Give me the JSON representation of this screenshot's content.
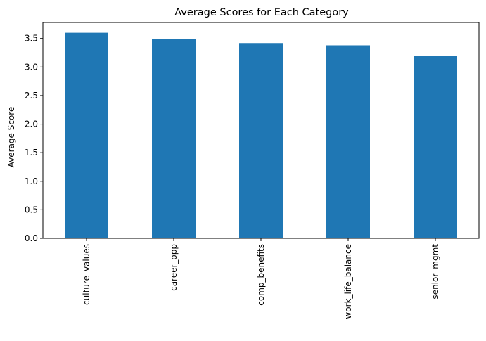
{
  "chart_data": {
    "type": "bar",
    "title": "Average Scores for Each Category",
    "xlabel": "",
    "ylabel": "Average Score",
    "categories": [
      "culture_values",
      "career_opp",
      "comp_benefits",
      "work_life_balance",
      "senior_mgmt"
    ],
    "values": [
      3.6,
      3.49,
      3.42,
      3.38,
      3.2
    ],
    "ylim": [
      0,
      3.78
    ],
    "yticks": [
      0.0,
      0.5,
      1.0,
      1.5,
      2.0,
      2.5,
      3.0,
      3.5
    ],
    "ytick_labels": [
      "0.0",
      "0.5",
      "1.0",
      "1.5",
      "2.0",
      "2.5",
      "3.0",
      "3.5"
    ],
    "grid": false,
    "legend": "none",
    "colors": {
      "bar": "#1f77b4",
      "axis": "#000000",
      "background": "#ffffff"
    }
  }
}
